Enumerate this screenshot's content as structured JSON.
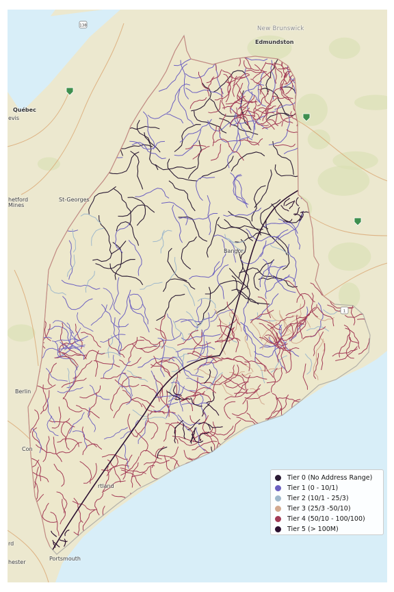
{
  "map": {
    "colors": {
      "water": "#d8eef8",
      "land": "#ece8cf",
      "maine_land": "#ede8cc",
      "forest": "#d8dfb2",
      "border": "#c9837a"
    },
    "places": [
      {
        "name": "New Brunswick",
        "kind": "region"
      },
      {
        "name": "Edmundston",
        "kind": "city"
      },
      {
        "name": "Québec",
        "kind": "city"
      },
      {
        "name": "evis",
        "kind": "town"
      },
      {
        "name": "hetford",
        "kind": "town"
      },
      {
        "name": "Mines",
        "kind": "town"
      },
      {
        "name": "St-Georges",
        "kind": "town"
      },
      {
        "name": "Berlin",
        "kind": "town"
      },
      {
        "name": "Con",
        "kind": "town"
      },
      {
        "name": "rd",
        "kind": "town"
      },
      {
        "name": "hester",
        "kind": "town"
      },
      {
        "name": "Portsmouth",
        "kind": "town"
      },
      {
        "name": "rtland",
        "kind": "town"
      },
      {
        "name": "Bangor",
        "kind": "town"
      }
    ],
    "shields": [
      "138",
      "1"
    ]
  },
  "legend": {
    "items": [
      {
        "label": "Tier 0 (No Address Range)",
        "color": "#2a1a33"
      },
      {
        "label": "Tier 1 (0 - 10/1)",
        "color": "#6b5fc0"
      },
      {
        "label": "Tier 2 (10/1 - 25/3)",
        "color": "#9fb8cb"
      },
      {
        "label": "Tier 3 (25/3 -50/10)",
        "color": "#d3a98f"
      },
      {
        "label": "Tier 4 (50/10 - 100/100)",
        "color": "#a23a55"
      },
      {
        "label": "Tier 5 (> 100M)",
        "color": "#2c1030"
      }
    ]
  }
}
